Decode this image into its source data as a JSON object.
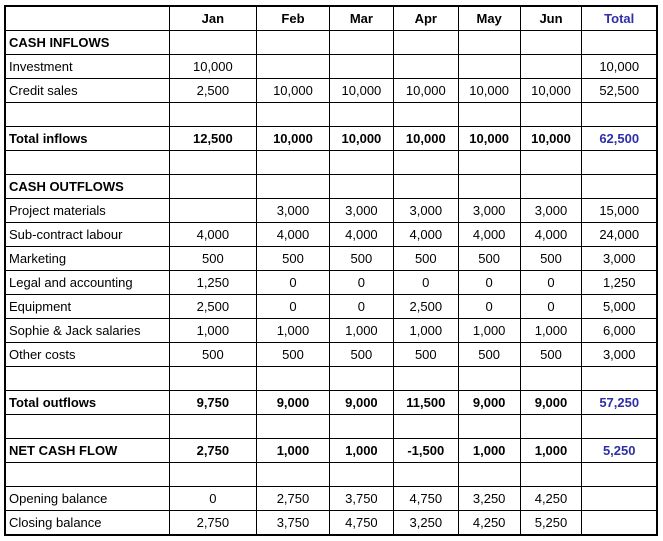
{
  "colors": {
    "total_text": "#2E2EA8",
    "grid_line": "#000000",
    "body_text": "#000000"
  },
  "table": {
    "columns": [
      "",
      "Jan",
      "Feb",
      "Mar",
      "Apr",
      "May",
      "Jun",
      "Total"
    ],
    "rows": [
      {
        "type": "section",
        "label": "CASH INFLOWS",
        "cells": [
          "",
          "",
          "",
          "",
          "",
          ""
        ],
        "total": ""
      },
      {
        "type": "normal",
        "label": "Investment",
        "cells": [
          "10,000",
          "",
          "",
          "",
          "",
          ""
        ],
        "total": "10,000"
      },
      {
        "type": "normal",
        "label": "Credit sales",
        "cells": [
          "2,500",
          "10,000",
          "10,000",
          "10,000",
          "10,000",
          "10,000"
        ],
        "total": "52,500"
      },
      {
        "type": "blank",
        "label": "",
        "cells": [
          "",
          "",
          "",
          "",
          "",
          ""
        ],
        "total": ""
      },
      {
        "type": "total",
        "label": "Total inflows",
        "cells": [
          "12,500",
          "10,000",
          "10,000",
          "10,000",
          "10,000",
          "10,000"
        ],
        "total": "62,500"
      },
      {
        "type": "blank",
        "label": "",
        "cells": [
          "",
          "",
          "",
          "",
          "",
          ""
        ],
        "total": ""
      },
      {
        "type": "section",
        "label": "CASH OUTFLOWS",
        "cells": [
          "",
          "",
          "",
          "",
          "",
          ""
        ],
        "total": ""
      },
      {
        "type": "normal",
        "label": "Project materials",
        "cells": [
          "",
          "3,000",
          "3,000",
          "3,000",
          "3,000",
          "3,000"
        ],
        "total": "15,000"
      },
      {
        "type": "normal",
        "label": "Sub-contract labour",
        "cells": [
          "4,000",
          "4,000",
          "4,000",
          "4,000",
          "4,000",
          "4,000"
        ],
        "total": "24,000"
      },
      {
        "type": "normal",
        "label": "Marketing",
        "cells": [
          "500",
          "500",
          "500",
          "500",
          "500",
          "500"
        ],
        "total": "3,000"
      },
      {
        "type": "normal",
        "label": "Legal and accounting",
        "cells": [
          "1,250",
          "0",
          "0",
          "0",
          "0",
          "0"
        ],
        "total": "1,250"
      },
      {
        "type": "normal",
        "label": "Equipment",
        "cells": [
          "2,500",
          "0",
          "0",
          "2,500",
          "0",
          "0"
        ],
        "total": "5,000"
      },
      {
        "type": "normal",
        "label": "Sophie & Jack salaries",
        "cells": [
          "1,000",
          "1,000",
          "1,000",
          "1,000",
          "1,000",
          "1,000"
        ],
        "total": "6,000"
      },
      {
        "type": "normal",
        "label": "Other costs",
        "cells": [
          "500",
          "500",
          "500",
          "500",
          "500",
          "500"
        ],
        "total": "3,000"
      },
      {
        "type": "blank",
        "label": "",
        "cells": [
          "",
          "",
          "",
          "",
          "",
          ""
        ],
        "total": ""
      },
      {
        "type": "total",
        "label": "Total outflows",
        "cells": [
          "9,750",
          "9,000",
          "9,000",
          "11,500",
          "9,000",
          "9,000"
        ],
        "total": "57,250"
      },
      {
        "type": "blank",
        "label": "",
        "cells": [
          "",
          "",
          "",
          "",
          "",
          ""
        ],
        "total": ""
      },
      {
        "type": "total",
        "label": "NET CASH FLOW",
        "cells": [
          "2,750",
          "1,000",
          "1,000",
          "-1,500",
          "1,000",
          "1,000"
        ],
        "total": "5,250"
      },
      {
        "type": "blank",
        "label": "",
        "cells": [
          "",
          "",
          "",
          "",
          "",
          ""
        ],
        "total": ""
      },
      {
        "type": "normal",
        "label": "Opening balance",
        "cells": [
          "0",
          "2,750",
          "3,750",
          "4,750",
          "3,250",
          "4,250"
        ],
        "total": ""
      },
      {
        "type": "normal",
        "label": "Closing balance",
        "cells": [
          "2,750",
          "3,750",
          "4,750",
          "3,250",
          "4,250",
          "5,250"
        ],
        "total": ""
      }
    ]
  }
}
